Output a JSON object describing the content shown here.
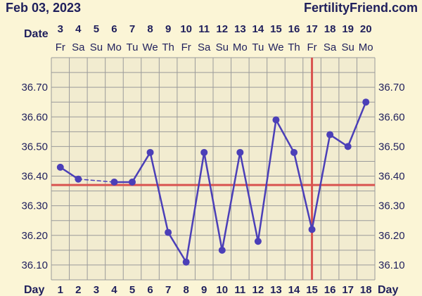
{
  "header": {
    "date_text": "Feb 03, 2023",
    "site": "FertilityFriend.com"
  },
  "chart_data": {
    "type": "line",
    "date_row_label": "Date",
    "day_row_label": "Day",
    "dates": [
      "3",
      "4",
      "5",
      "6",
      "7",
      "8",
      "9",
      "10",
      "11",
      "12",
      "13",
      "14",
      "15",
      "16",
      "17",
      "18",
      "19",
      "20"
    ],
    "weekdays": [
      "Fr",
      "Sa",
      "Su",
      "Mo",
      "Tu",
      "We",
      "Th",
      "Fr",
      "Sa",
      "Su",
      "Mo",
      "Tu",
      "We",
      "Th",
      "Fr",
      "Sa",
      "Su",
      "Mo"
    ],
    "cycle_days": [
      1,
      2,
      3,
      4,
      5,
      6,
      7,
      8,
      9,
      10,
      11,
      12,
      13,
      14,
      15,
      16,
      17,
      18
    ],
    "y_ticks": [
      "36.70",
      "36.60",
      "36.50",
      "36.40",
      "36.30",
      "36.20",
      "36.10"
    ],
    "ylim": [
      36.05,
      36.8
    ],
    "temperatures": [
      36.43,
      36.39,
      null,
      36.38,
      36.38,
      36.48,
      36.21,
      36.11,
      36.48,
      36.15,
      36.48,
      36.18,
      36.59,
      36.48,
      36.22,
      36.54,
      36.5,
      36.65
    ],
    "coverline": 36.37,
    "ovulation_day": 15,
    "colors": {
      "line": "#4b3fb8",
      "marker": "#4b3fb8",
      "coverline": "#d9534f",
      "ovulation": "#d9534f",
      "grid": "#9a9a9a",
      "background": "#fbf5d6"
    },
    "grid": true
  }
}
